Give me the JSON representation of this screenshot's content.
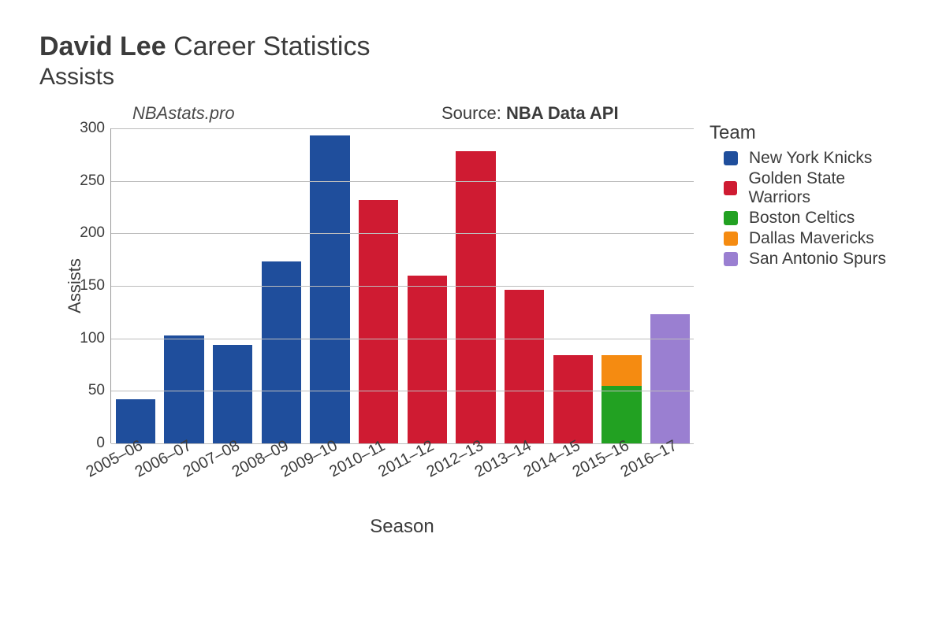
{
  "title": {
    "bold": "David Lee",
    "rest": " Career Statistics",
    "subtitle": "Assists",
    "title_fontsize": 34,
    "subtitle_fontsize": 30
  },
  "annotations": {
    "left_italic": "NBAstats.pro",
    "source_prefix": "Source: ",
    "source_bold": "NBA Data API"
  },
  "chart": {
    "type": "stacked-bar",
    "xlabel": "Season",
    "ylabel": "Assists",
    "ylim": [
      0,
      300
    ],
    "ytick_step": 50,
    "yticks": [
      0,
      50,
      100,
      150,
      200,
      250,
      300
    ],
    "background_color": "#ffffff",
    "grid_color": "#bdbdbd",
    "bar_width_ratio": 0.82,
    "label_fontsize": 22,
    "tick_fontsize": 19,
    "x_tick_rotation_deg": -28,
    "seasons": [
      "2005–06",
      "2006–07",
      "2007–08",
      "2008–09",
      "2009–10",
      "2010–11",
      "2011–12",
      "2012–13",
      "2013–14",
      "2014–15",
      "2015–16",
      "2016–17"
    ],
    "series": [
      {
        "team": "New York Knicks",
        "color": "#1f4e9c",
        "values": [
          42,
          103,
          94,
          173,
          293,
          0,
          0,
          0,
          0,
          0,
          0,
          0
        ]
      },
      {
        "team": "Golden State Warriors",
        "color": "#cf1b32",
        "values": [
          0,
          0,
          0,
          0,
          0,
          232,
          160,
          278,
          146,
          84,
          0,
          0
        ]
      },
      {
        "team": "Boston Celtics",
        "color": "#22a122",
        "values": [
          0,
          0,
          0,
          0,
          0,
          0,
          0,
          0,
          0,
          0,
          55,
          0
        ]
      },
      {
        "team": "Dallas Mavericks",
        "color": "#f58b11",
        "values": [
          0,
          0,
          0,
          0,
          0,
          0,
          0,
          0,
          0,
          0,
          29,
          0
        ]
      },
      {
        "team": "San Antonio Spurs",
        "color": "#9a7fd1",
        "values": [
          0,
          0,
          0,
          0,
          0,
          0,
          0,
          0,
          0,
          0,
          0,
          123
        ]
      }
    ]
  },
  "legend": {
    "title": "Team"
  }
}
